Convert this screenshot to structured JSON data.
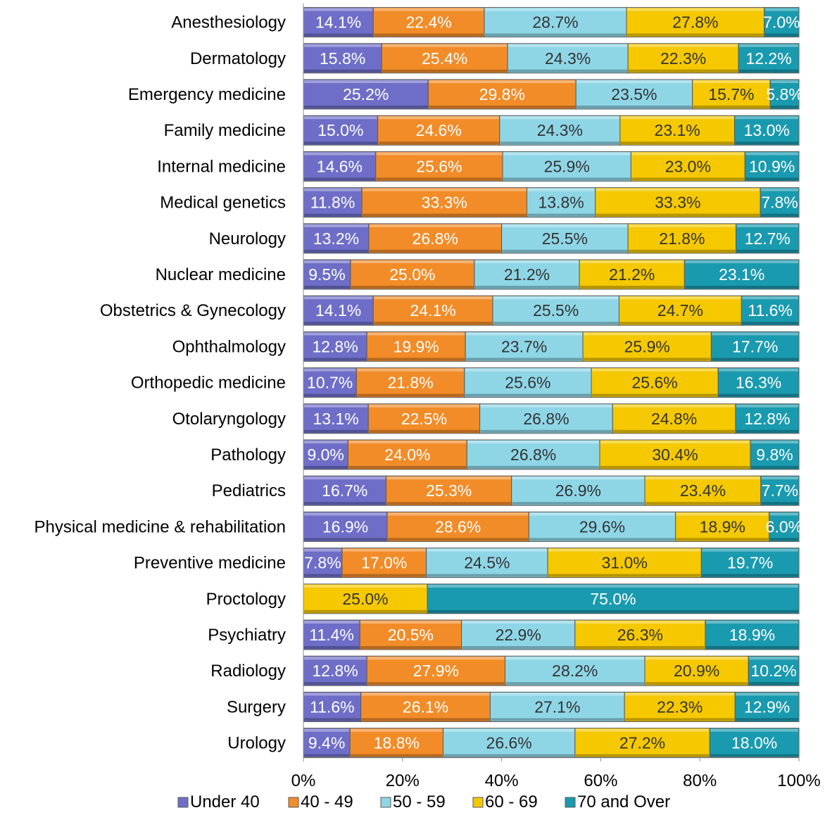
{
  "chart_data": {
    "type": "bar",
    "orientation": "horizontal",
    "stacked": "percent",
    "categories": [
      "Anesthesiology",
      "Dermatology",
      "Emergency medicine",
      "Family medicine",
      "Internal medicine",
      "Medical genetics",
      "Neurology",
      "Nuclear medicine",
      "Obstetrics & Gynecology",
      "Ophthalmology",
      "Orthopedic medicine",
      "Otolaryngology",
      "Pathology",
      "Pediatrics",
      "Physical medicine & rehabilitation",
      "Preventive medicine",
      "Proctology",
      "Psychiatry",
      "Radiology",
      "Surgery",
      "Urology"
    ],
    "series": [
      {
        "name": "Under 40",
        "color": "#6E6EC8",
        "label_color": "#ffffff",
        "values": [
          14.1,
          15.8,
          25.2,
          15.0,
          14.6,
          11.8,
          13.2,
          9.5,
          14.1,
          12.8,
          10.7,
          13.1,
          9.0,
          16.7,
          16.9,
          7.8,
          0.0,
          11.4,
          12.8,
          11.6,
          9.4
        ]
      },
      {
        "name": "40 - 49",
        "color": "#F28C28",
        "label_color": "#ffffff",
        "values": [
          22.4,
          25.4,
          29.8,
          24.6,
          25.6,
          33.3,
          26.8,
          25.0,
          24.1,
          19.9,
          21.8,
          22.5,
          24.0,
          25.3,
          28.6,
          17.0,
          0.0,
          20.5,
          27.9,
          26.1,
          18.8
        ]
      },
      {
        "name": "50 - 59",
        "color": "#8ED6E6",
        "label_color": "#333333",
        "values": [
          28.7,
          24.3,
          23.5,
          24.3,
          25.9,
          13.8,
          25.5,
          21.2,
          25.5,
          23.7,
          25.6,
          26.8,
          26.8,
          26.9,
          29.6,
          24.5,
          0.0,
          22.9,
          28.2,
          27.1,
          26.6
        ]
      },
      {
        "name": "60 - 69",
        "color": "#F5C800",
        "label_color": "#333333",
        "values": [
          27.8,
          22.3,
          15.7,
          23.1,
          23.0,
          33.3,
          21.8,
          21.2,
          24.7,
          25.9,
          25.6,
          24.8,
          30.4,
          23.4,
          18.9,
          31.0,
          25.0,
          26.3,
          20.9,
          22.3,
          27.2
        ]
      },
      {
        "name": "70 and Over",
        "color": "#1A9AAE",
        "label_color": "#ffffff",
        "values": [
          7.0,
          12.2,
          5.8,
          13.0,
          10.9,
          7.8,
          12.7,
          23.1,
          11.6,
          17.7,
          16.3,
          12.8,
          9.8,
          7.7,
          6.0,
          19.7,
          75.0,
          18.9,
          10.2,
          12.9,
          18.0
        ]
      }
    ],
    "xlim": [
      0,
      100
    ],
    "x_ticks": [
      "0%",
      "20%",
      "40%",
      "60%",
      "80%",
      "100%"
    ],
    "value_format": "percent_1dp",
    "legend_position": "bottom",
    "grid": false
  }
}
